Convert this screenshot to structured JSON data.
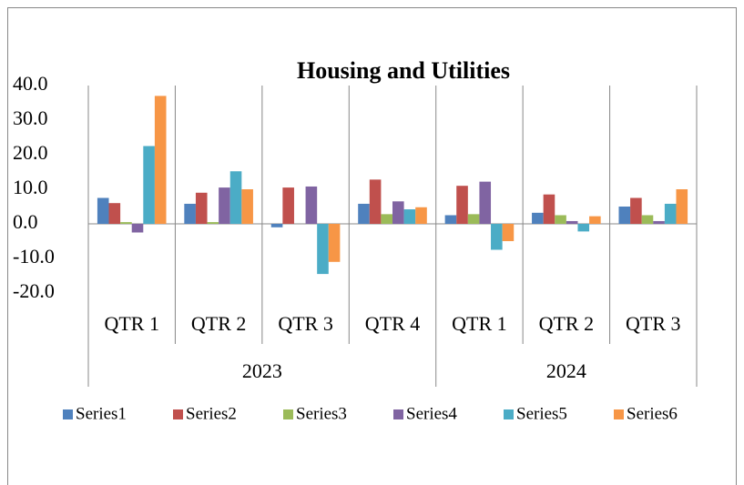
{
  "chart_data": {
    "type": "bar",
    "title": "Housing and Utilities",
    "categories": [
      "QTR 1",
      "QTR 2",
      "QTR 3",
      "QTR 4",
      "QTR 1",
      "QTR 2",
      "QTR 3"
    ],
    "category_groups": [
      {
        "label": "2023",
        "count": 4
      },
      {
        "label": "2024",
        "count": 3
      }
    ],
    "series": [
      {
        "name": "Series1",
        "color": "#4f81bd",
        "values": [
          7.5,
          5.8,
          -1.0,
          5.8,
          2.5,
          3.2,
          5.0
        ]
      },
      {
        "name": "Series2",
        "color": "#c0504d",
        "values": [
          6.0,
          9.0,
          10.5,
          12.8,
          11.0,
          8.5,
          7.5
        ]
      },
      {
        "name": "Series3",
        "color": "#9bbb59",
        "values": [
          0.5,
          0.5,
          0.0,
          2.8,
          2.8,
          2.5,
          2.5
        ]
      },
      {
        "name": "Series4",
        "color": "#8064a2",
        "values": [
          -2.5,
          10.5,
          10.8,
          6.5,
          12.2,
          0.8,
          0.8
        ]
      },
      {
        "name": "Series5",
        "color": "#4bacc6",
        "values": [
          22.5,
          15.2,
          -14.5,
          4.2,
          -7.5,
          -2.2,
          5.8
        ]
      },
      {
        "name": "Series6",
        "color": "#f79646",
        "values": [
          37.0,
          10.0,
          -11.0,
          4.8,
          -5.0,
          2.2,
          10.0
        ]
      }
    ],
    "ylim": [
      -20,
      40
    ],
    "yticks": [
      {
        "value": -20,
        "label": "-20.0"
      },
      {
        "value": -10,
        "label": "-10.0"
      },
      {
        "value": 0,
        "label": "0.0"
      },
      {
        "value": 10,
        "label": "10.0"
      },
      {
        "value": 20,
        "label": "20.0"
      },
      {
        "value": 30,
        "label": "30.0"
      },
      {
        "value": 40,
        "label": "40.0"
      }
    ],
    "legend": "bottom"
  }
}
